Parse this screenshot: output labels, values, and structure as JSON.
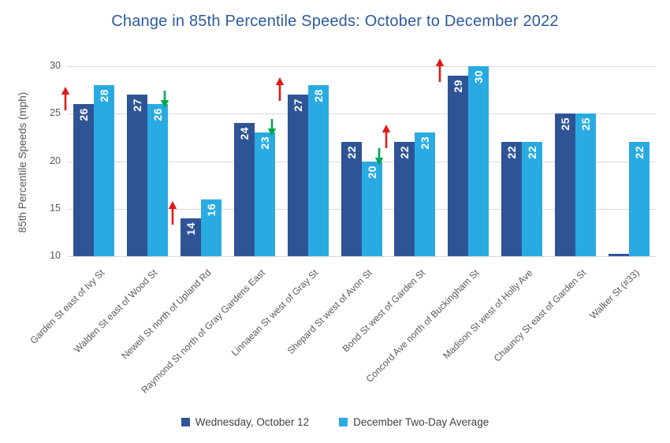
{
  "colors": {
    "accent_dark": "#2F5496",
    "accent_light": "#29ABE2",
    "title": "#2D5A9E",
    "axis_text": "#595959",
    "gridline": "#D9D9D9",
    "arrow_up": "#E01A1A",
    "arrow_down": "#00A651",
    "legend_text": "#404040",
    "label_text": "#FFFFFF"
  },
  "chart_data": {
    "type": "bar",
    "title": "Change in 85th Percentile Speeds: October to December 2022",
    "xlabel": "",
    "ylabel": "85th Percentile Speeds (mph)",
    "ylim": [
      10,
      30
    ],
    "yticks": [
      10,
      15,
      20,
      25,
      30
    ],
    "grid": true,
    "legend_position": "bottom",
    "categories": [
      "Garden St east of Ivy St",
      "Walden St east of Wood St",
      "Newell St north of Upland Rd",
      "Raymond St north of Gray Gardens East",
      "Linnaean St west of Gray St",
      "Shepard St west of Avon St",
      "Bond St west of Garden St",
      "Concord Ave north of Buckingham St",
      "Madison St west of Holly Ave",
      "Chauncy St east of Garden St",
      "Walker St (#33)"
    ],
    "series": [
      {
        "name": "Wednesday, October 12",
        "color": "#2F5496",
        "values": [
          26,
          27,
          14,
          24,
          27,
          22,
          22,
          29,
          22,
          25,
          10
        ]
      },
      {
        "name": "December Two-Day Average",
        "color": "#29ABE2",
        "values": [
          28,
          26,
          16,
          23,
          28,
          20,
          23,
          30,
          22,
          25,
          22
        ]
      }
    ],
    "change_arrows": [
      "up",
      "down",
      "up",
      "down",
      "up",
      "down",
      "up",
      "up",
      null,
      null,
      null
    ]
  }
}
